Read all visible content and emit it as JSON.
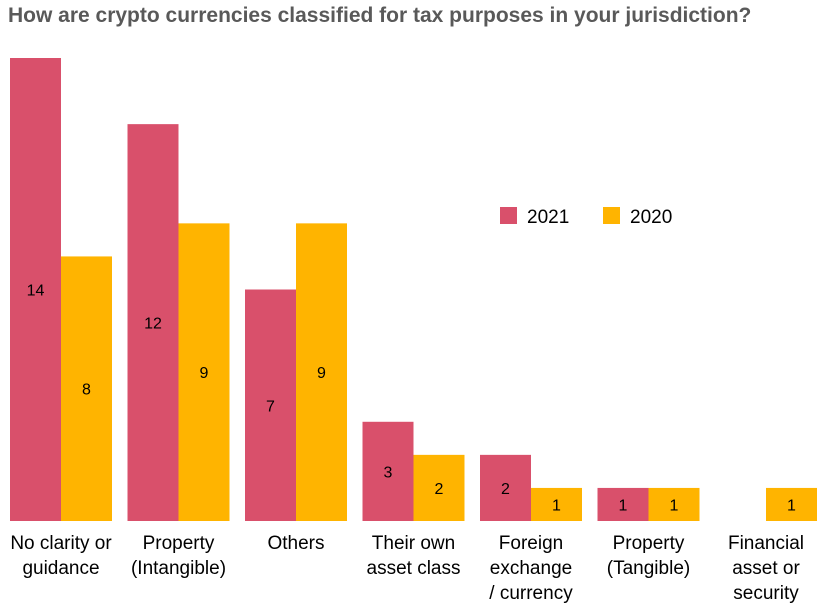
{
  "chart_data": {
    "type": "bar",
    "title": "How are crypto currencies classified for tax purposes in your jurisdiction?",
    "categories": [
      "No clarity or\nguidance",
      "Property\n(Intangible)",
      "Others",
      "Their own\nasset class",
      "Foreign\nexchange\n/ currency",
      "Property\n(Tangible)",
      "Financial\nasset or\nsecurity"
    ],
    "series": [
      {
        "name": "2021",
        "color": "#d9506b",
        "values": [
          14,
          12,
          7,
          3,
          2,
          1,
          null
        ]
      },
      {
        "name": "2020",
        "color": "#ffb400",
        "values": [
          8,
          9,
          9,
          2,
          1,
          1,
          1
        ]
      }
    ],
    "ylim": [
      0,
      14
    ],
    "xlabel": "",
    "ylabel": "",
    "grid": false,
    "legend_position": "top-right",
    "data_labels": true
  }
}
